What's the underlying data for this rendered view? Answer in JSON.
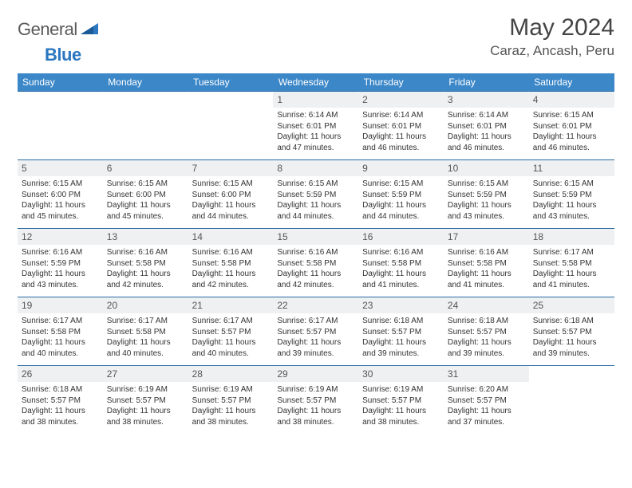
{
  "brand": {
    "part1": "General",
    "part2": "Blue"
  },
  "title": "May 2024",
  "location": "Caraz, Ancash, Peru",
  "colors": {
    "header_bg": "#3b87c8",
    "header_text": "#ffffff",
    "row_border": "#2b6aa5",
    "daynum_bg": "#eef0f2",
    "logo_gray": "#5a5a5a",
    "logo_blue": "#2b77c0"
  },
  "weekdays": [
    "Sunday",
    "Monday",
    "Tuesday",
    "Wednesday",
    "Thursday",
    "Friday",
    "Saturday"
  ],
  "cells": [
    {
      "n": "",
      "sr": "",
      "ss": "",
      "dl": ""
    },
    {
      "n": "",
      "sr": "",
      "ss": "",
      "dl": ""
    },
    {
      "n": "",
      "sr": "",
      "ss": "",
      "dl": ""
    },
    {
      "n": "1",
      "sr": "Sunrise: 6:14 AM",
      "ss": "Sunset: 6:01 PM",
      "dl": "Daylight: 11 hours and 47 minutes."
    },
    {
      "n": "2",
      "sr": "Sunrise: 6:14 AM",
      "ss": "Sunset: 6:01 PM",
      "dl": "Daylight: 11 hours and 46 minutes."
    },
    {
      "n": "3",
      "sr": "Sunrise: 6:14 AM",
      "ss": "Sunset: 6:01 PM",
      "dl": "Daylight: 11 hours and 46 minutes."
    },
    {
      "n": "4",
      "sr": "Sunrise: 6:15 AM",
      "ss": "Sunset: 6:01 PM",
      "dl": "Daylight: 11 hours and 46 minutes."
    },
    {
      "n": "5",
      "sr": "Sunrise: 6:15 AM",
      "ss": "Sunset: 6:00 PM",
      "dl": "Daylight: 11 hours and 45 minutes."
    },
    {
      "n": "6",
      "sr": "Sunrise: 6:15 AM",
      "ss": "Sunset: 6:00 PM",
      "dl": "Daylight: 11 hours and 45 minutes."
    },
    {
      "n": "7",
      "sr": "Sunrise: 6:15 AM",
      "ss": "Sunset: 6:00 PM",
      "dl": "Daylight: 11 hours and 44 minutes."
    },
    {
      "n": "8",
      "sr": "Sunrise: 6:15 AM",
      "ss": "Sunset: 5:59 PM",
      "dl": "Daylight: 11 hours and 44 minutes."
    },
    {
      "n": "9",
      "sr": "Sunrise: 6:15 AM",
      "ss": "Sunset: 5:59 PM",
      "dl": "Daylight: 11 hours and 44 minutes."
    },
    {
      "n": "10",
      "sr": "Sunrise: 6:15 AM",
      "ss": "Sunset: 5:59 PM",
      "dl": "Daylight: 11 hours and 43 minutes."
    },
    {
      "n": "11",
      "sr": "Sunrise: 6:15 AM",
      "ss": "Sunset: 5:59 PM",
      "dl": "Daylight: 11 hours and 43 minutes."
    },
    {
      "n": "12",
      "sr": "Sunrise: 6:16 AM",
      "ss": "Sunset: 5:59 PM",
      "dl": "Daylight: 11 hours and 43 minutes."
    },
    {
      "n": "13",
      "sr": "Sunrise: 6:16 AM",
      "ss": "Sunset: 5:58 PM",
      "dl": "Daylight: 11 hours and 42 minutes."
    },
    {
      "n": "14",
      "sr": "Sunrise: 6:16 AM",
      "ss": "Sunset: 5:58 PM",
      "dl": "Daylight: 11 hours and 42 minutes."
    },
    {
      "n": "15",
      "sr": "Sunrise: 6:16 AM",
      "ss": "Sunset: 5:58 PM",
      "dl": "Daylight: 11 hours and 42 minutes."
    },
    {
      "n": "16",
      "sr": "Sunrise: 6:16 AM",
      "ss": "Sunset: 5:58 PM",
      "dl": "Daylight: 11 hours and 41 minutes."
    },
    {
      "n": "17",
      "sr": "Sunrise: 6:16 AM",
      "ss": "Sunset: 5:58 PM",
      "dl": "Daylight: 11 hours and 41 minutes."
    },
    {
      "n": "18",
      "sr": "Sunrise: 6:17 AM",
      "ss": "Sunset: 5:58 PM",
      "dl": "Daylight: 11 hours and 41 minutes."
    },
    {
      "n": "19",
      "sr": "Sunrise: 6:17 AM",
      "ss": "Sunset: 5:58 PM",
      "dl": "Daylight: 11 hours and 40 minutes."
    },
    {
      "n": "20",
      "sr": "Sunrise: 6:17 AM",
      "ss": "Sunset: 5:58 PM",
      "dl": "Daylight: 11 hours and 40 minutes."
    },
    {
      "n": "21",
      "sr": "Sunrise: 6:17 AM",
      "ss": "Sunset: 5:57 PM",
      "dl": "Daylight: 11 hours and 40 minutes."
    },
    {
      "n": "22",
      "sr": "Sunrise: 6:17 AM",
      "ss": "Sunset: 5:57 PM",
      "dl": "Daylight: 11 hours and 39 minutes."
    },
    {
      "n": "23",
      "sr": "Sunrise: 6:18 AM",
      "ss": "Sunset: 5:57 PM",
      "dl": "Daylight: 11 hours and 39 minutes."
    },
    {
      "n": "24",
      "sr": "Sunrise: 6:18 AM",
      "ss": "Sunset: 5:57 PM",
      "dl": "Daylight: 11 hours and 39 minutes."
    },
    {
      "n": "25",
      "sr": "Sunrise: 6:18 AM",
      "ss": "Sunset: 5:57 PM",
      "dl": "Daylight: 11 hours and 39 minutes."
    },
    {
      "n": "26",
      "sr": "Sunrise: 6:18 AM",
      "ss": "Sunset: 5:57 PM",
      "dl": "Daylight: 11 hours and 38 minutes."
    },
    {
      "n": "27",
      "sr": "Sunrise: 6:19 AM",
      "ss": "Sunset: 5:57 PM",
      "dl": "Daylight: 11 hours and 38 minutes."
    },
    {
      "n": "28",
      "sr": "Sunrise: 6:19 AM",
      "ss": "Sunset: 5:57 PM",
      "dl": "Daylight: 11 hours and 38 minutes."
    },
    {
      "n": "29",
      "sr": "Sunrise: 6:19 AM",
      "ss": "Sunset: 5:57 PM",
      "dl": "Daylight: 11 hours and 38 minutes."
    },
    {
      "n": "30",
      "sr": "Sunrise: 6:19 AM",
      "ss": "Sunset: 5:57 PM",
      "dl": "Daylight: 11 hours and 38 minutes."
    },
    {
      "n": "31",
      "sr": "Sunrise: 6:20 AM",
      "ss": "Sunset: 5:57 PM",
      "dl": "Daylight: 11 hours and 37 minutes."
    },
    {
      "n": "",
      "sr": "",
      "ss": "",
      "dl": ""
    }
  ]
}
